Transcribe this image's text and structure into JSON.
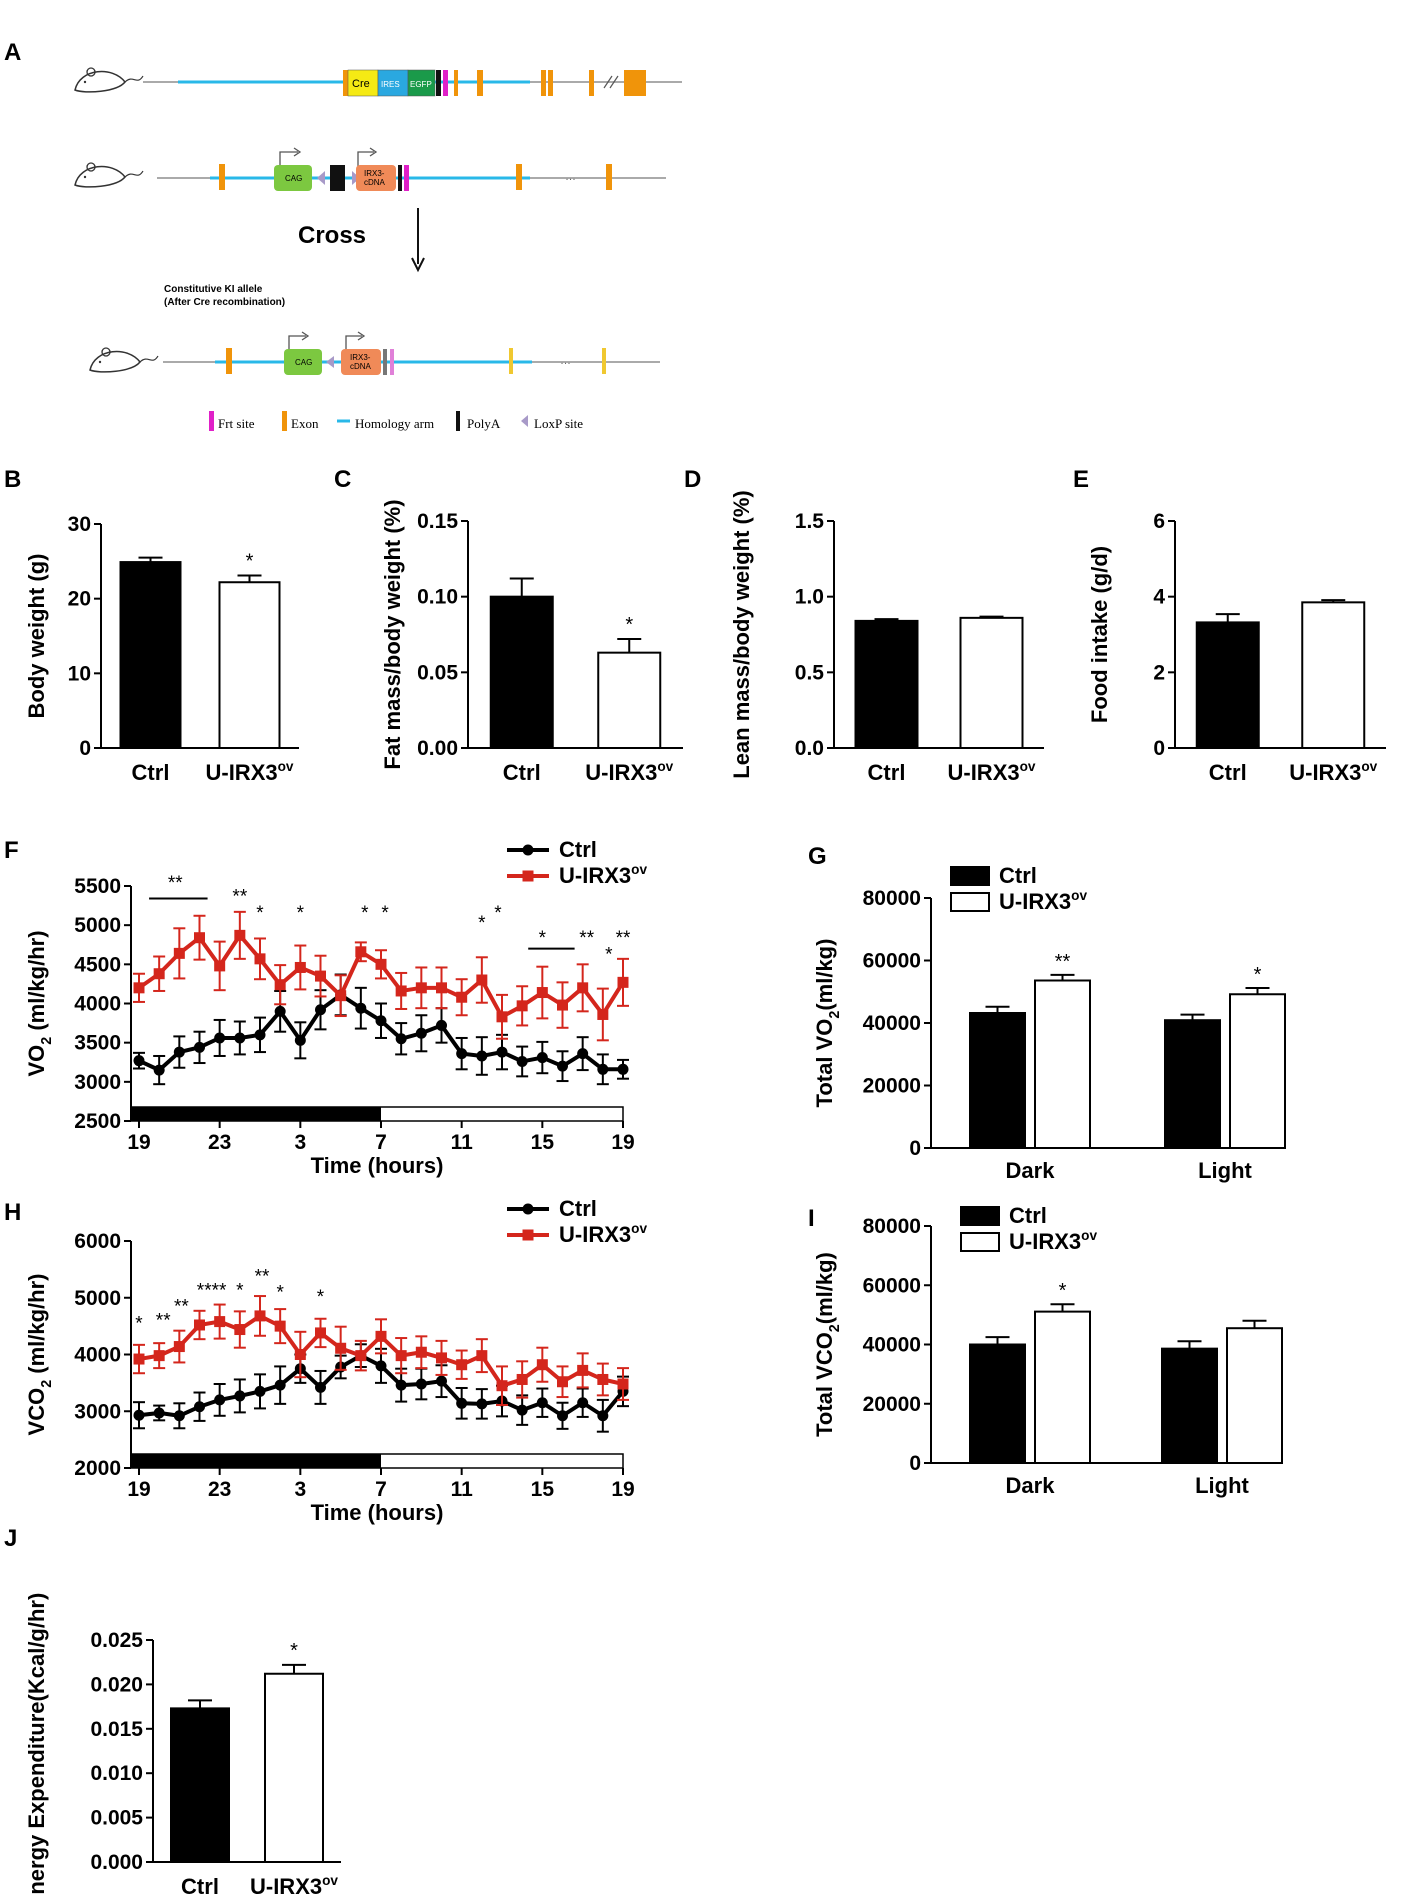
{
  "panel_labels": [
    "A",
    "B",
    "C",
    "D",
    "E",
    "F",
    "G",
    "H",
    "I",
    "J"
  ],
  "schematic": {
    "cross_label": "Cross",
    "ki_caption_line1": "Constitutive KI allele",
    "ki_caption_line2": "(After Cre recombination)",
    "row1_boxes": {
      "cre": "Cre",
      "ires": "IRES",
      "egfp": "EGFP"
    },
    "row2_boxes": {
      "cag": "CAG",
      "irx3_line1": "IRX3-",
      "irx3_line2": "cDNA"
    },
    "row3_boxes": {
      "cag": "CAG",
      "irx3_line1": "IRX3-",
      "irx3_line2": "cDNA"
    },
    "legend": [
      "Frt site",
      "Exon",
      "Homology arm",
      "PolyA",
      "LoxP site"
    ],
    "colors": {
      "frt": "#e020c8",
      "exon": "#f0940a",
      "homology": "#29b8e8",
      "polya": "#111111",
      "loxp": "#a89ac8",
      "cre": "#f5ea14",
      "ires": "#2aa8e0",
      "egfp": "#1a9a4a",
      "cag": "#7cc840",
      "irx3": "#f08a58"
    }
  },
  "chart_data": [
    {
      "id": "B",
      "type": "bar",
      "categories": [
        "Ctrl",
        "U-IRX3ov"
      ],
      "values": [
        24.9,
        22.2
      ],
      "errors": [
        0.6,
        0.9
      ],
      "significance": [
        "",
        "*"
      ],
      "ylabel": "Body weight (g)",
      "ylim": [
        0,
        30
      ],
      "yticks": [
        "0",
        "10",
        "20",
        "30"
      ]
    },
    {
      "id": "C",
      "type": "bar",
      "categories": [
        "Ctrl",
        "U-IRX3ov"
      ],
      "values": [
        0.1,
        0.063
      ],
      "errors": [
        0.012,
        0.009
      ],
      "significance": [
        "",
        "*"
      ],
      "ylabel": "Fat mass/body weight (%)",
      "ylim": [
        0,
        0.15
      ],
      "yticks": [
        "0.00",
        "0.05",
        "0.10",
        "0.15"
      ]
    },
    {
      "id": "D",
      "type": "bar",
      "categories": [
        "Ctrl",
        "U-IRX3ov"
      ],
      "values": [
        0.84,
        0.86
      ],
      "errors": [
        0.012,
        0.008
      ],
      "significance": [
        "",
        ""
      ],
      "ylabel": "Lean mass/body weight (%)",
      "ylim": [
        0,
        1.5
      ],
      "yticks": [
        "0.0",
        "0.5",
        "1.0",
        "1.5"
      ]
    },
    {
      "id": "E",
      "type": "bar",
      "categories": [
        "Ctrl",
        "U-IRX3ov"
      ],
      "values": [
        3.32,
        3.85
      ],
      "errors": [
        0.22,
        0.06
      ],
      "significance": [
        "",
        ""
      ],
      "ylabel": "Food intake (g/d)",
      "ylim": [
        0,
        6
      ],
      "yticks": [
        "0",
        "2",
        "4",
        "6"
      ]
    },
    {
      "id": "F",
      "type": "line",
      "xlabel": "Time (hours)",
      "ylabel": "VO2 (ml/kg/hr)",
      "x": [
        0,
        1,
        2,
        3,
        4,
        5,
        6,
        7,
        8,
        9,
        10,
        11,
        12,
        13,
        14,
        15,
        16,
        17,
        18,
        19,
        20,
        21,
        22,
        23,
        24
      ],
      "xticks": [
        "19",
        "23",
        "3",
        "7",
        "11",
        "15",
        "19"
      ],
      "ylim": [
        2500,
        5500
      ],
      "yticks": [
        "2500",
        "3000",
        "3500",
        "4000",
        "4500",
        "5000",
        "5500"
      ],
      "series": [
        {
          "name": "Ctrl",
          "color": "#000000",
          "values": [
            3270,
            3150,
            3380,
            3440,
            3560,
            3560,
            3600,
            3900,
            3530,
            3920,
            4110,
            3940,
            3780,
            3550,
            3620,
            3720,
            3360,
            3330,
            3380,
            3260,
            3310,
            3200,
            3360,
            3160,
            3160
          ],
          "errors": [
            100,
            180,
            200,
            200,
            230,
            210,
            220,
            260,
            230,
            250,
            260,
            260,
            220,
            200,
            230,
            220,
            200,
            240,
            220,
            190,
            200,
            190,
            210,
            190,
            120
          ]
        },
        {
          "name": "U-IRX3ov",
          "color": "#d4261c",
          "values": [
            4200,
            4380,
            4640,
            4840,
            4480,
            4870,
            4570,
            4240,
            4460,
            4350,
            4100,
            4660,
            4500,
            4160,
            4200,
            4200,
            4080,
            4300,
            3830,
            3970,
            4140,
            3980,
            4200,
            3860,
            4270
          ],
          "errors": [
            180,
            220,
            320,
            280,
            310,
            300,
            260,
            250,
            280,
            260,
            260,
            120,
            180,
            230,
            260,
            260,
            230,
            290,
            280,
            250,
            330,
            290,
            300,
            330,
            300
          ]
        }
      ],
      "annotations": [
        {
          "x": 1.8,
          "text": "**",
          "y": 5460
        },
        {
          "x": 5.0,
          "text": "**",
          "y": 5290
        },
        {
          "x": 6.0,
          "text": "*",
          "y": 5080
        },
        {
          "x": 8.0,
          "text": "*",
          "y": 5080
        },
        {
          "x": 11.2,
          "text": "*",
          "y": 5080
        },
        {
          "x": 12.2,
          "text": "*",
          "y": 5080
        },
        {
          "x": 17.0,
          "text": "*",
          "y": 4950
        },
        {
          "x": 17.8,
          "text": "*",
          "y": 5080
        },
        {
          "x": 20.0,
          "text": "*",
          "y": 4760
        },
        {
          "x": 22.2,
          "text": "**",
          "y": 4760
        },
        {
          "x": 23.3,
          "text": "*",
          "y": 4550
        },
        {
          "x": 24.0,
          "text": "**",
          "y": 4760
        }
      ],
      "sig_bars": [
        {
          "x1": 0.5,
          "x2": 3.4,
          "y": 5340
        },
        {
          "x1": 19.3,
          "x2": 21.6,
          "y": 4700
        }
      ],
      "dark_period": [
        0,
        12
      ]
    },
    {
      "id": "H",
      "type": "line",
      "xlabel": "Time (hours)",
      "ylabel": "VCO2 (ml/kg/hr)",
      "x": [
        0,
        1,
        2,
        3,
        4,
        5,
        6,
        7,
        8,
        9,
        10,
        11,
        12,
        13,
        14,
        15,
        16,
        17,
        18,
        19,
        20,
        21,
        22,
        23,
        24
      ],
      "xticks": [
        "19",
        "23",
        "3",
        "7",
        "11",
        "15",
        "19"
      ],
      "ylim": [
        2000,
        6000
      ],
      "yticks": [
        "2000",
        "3000",
        "4000",
        "5000",
        "6000"
      ],
      "series": [
        {
          "name": "Ctrl",
          "color": "#000000",
          "values": [
            2930,
            2970,
            2920,
            3080,
            3200,
            3270,
            3350,
            3460,
            3750,
            3420,
            3780,
            3980,
            3800,
            3460,
            3480,
            3530,
            3140,
            3130,
            3180,
            3020,
            3150,
            2920,
            3150,
            2920,
            3350
          ],
          "errors": [
            230,
            130,
            220,
            250,
            280,
            290,
            300,
            330,
            250,
            290,
            200,
            200,
            300,
            290,
            270,
            280,
            270,
            260,
            270,
            260,
            250,
            230,
            250,
            280,
            260
          ]
        },
        {
          "name": "U-IRX3ov",
          "color": "#d4261c",
          "values": [
            3920,
            3980,
            4140,
            4520,
            4580,
            4440,
            4680,
            4500,
            4000,
            4380,
            4110,
            3980,
            4320,
            3980,
            4040,
            3940,
            3820,
            3980,
            3450,
            3560,
            3820,
            3520,
            3720,
            3560,
            3480
          ],
          "errors": [
            250,
            220,
            280,
            250,
            300,
            320,
            350,
            300,
            400,
            250,
            380,
            260,
            300,
            310,
            280,
            300,
            250,
            290,
            340,
            320,
            300,
            270,
            300,
            280,
            280
          ]
        }
      ],
      "annotations": [
        {
          "x": 0.0,
          "text": "*",
          "y": 4440
        },
        {
          "x": 1.2,
          "text": "**",
          "y": 4490
        },
        {
          "x": 2.1,
          "text": "**",
          "y": 4740
        },
        {
          "x": 3.6,
          "text": "****",
          "y": 5020
        },
        {
          "x": 5.0,
          "text": "*",
          "y": 5020
        },
        {
          "x": 6.1,
          "text": "**",
          "y": 5270
        },
        {
          "x": 7.0,
          "text": "*",
          "y": 4990
        },
        {
          "x": 9.0,
          "text": "*",
          "y": 4910
        }
      ],
      "sig_bars": [],
      "dark_period": [
        0,
        12
      ]
    },
    {
      "id": "G",
      "type": "bar",
      "categories": [
        "Dark",
        "Light"
      ],
      "series": [
        {
          "name": "Ctrl",
          "values": [
            43200,
            40900
          ],
          "errors": [
            2000,
            1800
          ]
        },
        {
          "name": "U-IRX3ov",
          "values": [
            53600,
            49200
          ],
          "errors": [
            1800,
            2000
          ]
        }
      ],
      "significance": [
        [
          "",
          "**"
        ],
        [
          "",
          "*"
        ]
      ],
      "ylabel": "Total VO2(ml/kg)",
      "ylim": [
        0,
        80000
      ],
      "yticks": [
        "0",
        "20000",
        "40000",
        "60000",
        "80000"
      ]
    },
    {
      "id": "I",
      "type": "bar",
      "categories": [
        "Dark",
        "Light"
      ],
      "series": [
        {
          "name": "Ctrl",
          "values": [
            40000,
            38600
          ],
          "errors": [
            2500,
            2500
          ]
        },
        {
          "name": "U-IRX3ov",
          "values": [
            51100,
            45500
          ],
          "errors": [
            2500,
            2500
          ]
        }
      ],
      "significance": [
        [
          "",
          "*"
        ],
        [
          "",
          ""
        ]
      ],
      "ylabel": "Total VCO2(ml/kg)",
      "ylim": [
        0,
        80000
      ],
      "yticks": [
        "0",
        "20000",
        "40000",
        "60000",
        "80000"
      ]
    },
    {
      "id": "J",
      "type": "bar",
      "categories": [
        "Ctrl",
        "U-IRX3ov"
      ],
      "values": [
        0.0173,
        0.0212
      ],
      "errors": [
        0.0009,
        0.001
      ],
      "significance": [
        "",
        "*"
      ],
      "ylabel": "Energy Expenditure(Kcal/g/hr)",
      "ylim": [
        0,
        0.025
      ],
      "yticks": [
        "0.000",
        "0.005",
        "0.010",
        "0.015",
        "0.020",
        "0.025"
      ]
    }
  ]
}
